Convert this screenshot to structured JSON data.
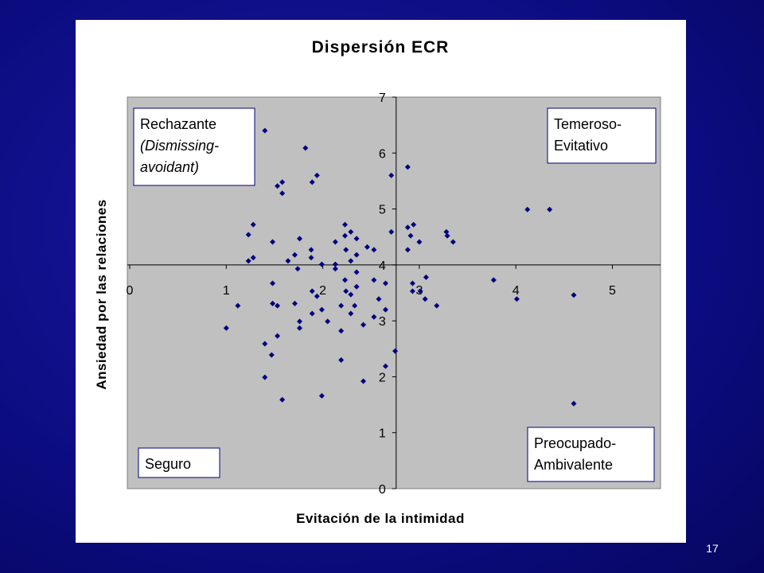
{
  "chart_data": {
    "type": "scatter",
    "title": "Dispersión ECR",
    "x_label": "Evitación de la intimidad",
    "y_label": "Ansiedad por las relaciones",
    "xlim": [
      0,
      5.5
    ],
    "ylim": [
      0,
      7
    ],
    "xticks": [
      0,
      1,
      2,
      3,
      4,
      5
    ],
    "yticks": [
      0,
      1,
      2,
      3,
      4,
      5,
      6,
      7
    ],
    "x_axis_crosses_y": 4,
    "y_axis_crosses_x": 2.76,
    "grid": false,
    "series": [
      {
        "name": "ECR",
        "color": "#000080",
        "x": [
          1.4,
          1.82,
          2.88,
          1.94,
          2.71,
          1.89,
          1.58,
          1.53,
          1.58,
          4.12,
          4.35,
          1.28,
          2.23,
          2.94,
          2.88,
          2.71,
          3.28,
          2.29,
          1.23,
          2.23,
          2.91,
          3.29,
          1.76,
          2.35,
          1.48,
          2.13,
          3.0,
          3.35,
          2.46,
          1.88,
          2.24,
          2.53,
          2.88,
          1.71,
          2.35,
          1.28,
          1.88,
          1.23,
          1.64,
          1.99,
          2.13,
          2.29,
          1.74,
          2.13,
          2.35,
          3.07,
          3.77,
          2.23,
          2.53,
          1.48,
          2.65,
          2.93,
          2.35,
          2.24,
          2.93,
          3.01,
          1.89,
          1.94,
          2.29,
          4.6,
          2.58,
          3.06,
          4.01,
          1.71,
          1.48,
          1.12,
          1.53,
          2.19,
          2.33,
          3.18,
          2.65,
          1.99,
          1.89,
          2.29,
          2.53,
          1.76,
          2.05,
          2.42,
          1.0,
          1.76,
          2.19,
          1.53,
          1.4,
          2.75,
          1.47,
          2.19,
          2.65,
          1.4,
          2.42,
          1.99,
          1.58,
          4.6
        ],
        "y": [
          6.4,
          6.09,
          5.75,
          5.6,
          5.6,
          5.48,
          5.48,
          5.41,
          5.28,
          4.99,
          4.99,
          4.72,
          4.72,
          4.72,
          4.67,
          4.59,
          4.59,
          4.59,
          4.54,
          4.52,
          4.52,
          4.52,
          4.47,
          4.47,
          4.41,
          4.41,
          4.41,
          4.41,
          4.32,
          4.27,
          4.27,
          4.27,
          4.27,
          4.18,
          4.18,
          4.13,
          4.13,
          4.07,
          4.07,
          4.01,
          4.01,
          4.07,
          3.93,
          3.93,
          3.87,
          3.78,
          3.73,
          3.73,
          3.73,
          3.67,
          3.67,
          3.67,
          3.61,
          3.53,
          3.53,
          3.53,
          3.53,
          3.44,
          3.47,
          3.46,
          3.39,
          3.39,
          3.39,
          3.31,
          3.31,
          3.27,
          3.27,
          3.27,
          3.27,
          3.27,
          3.2,
          3.2,
          3.13,
          3.13,
          3.07,
          2.99,
          2.99,
          2.93,
          2.87,
          2.87,
          2.82,
          2.73,
          2.59,
          2.46,
          2.39,
          2.3,
          2.19,
          1.99,
          1.92,
          1.66,
          1.59,
          1.52
        ]
      }
    ],
    "annotations": [
      {
        "lines": [
          "Rechazante",
          "(Dismissing-",
          "avoidant)"
        ],
        "italic_lines": [
          1,
          2
        ]
      },
      {
        "lines": [
          "Temeroso-",
          "Evitativo"
        ]
      },
      {
        "lines": [
          "Preocupado-",
          "Ambivalente"
        ]
      },
      {
        "lines": [
          "Seguro"
        ]
      }
    ]
  },
  "page_number": "17"
}
